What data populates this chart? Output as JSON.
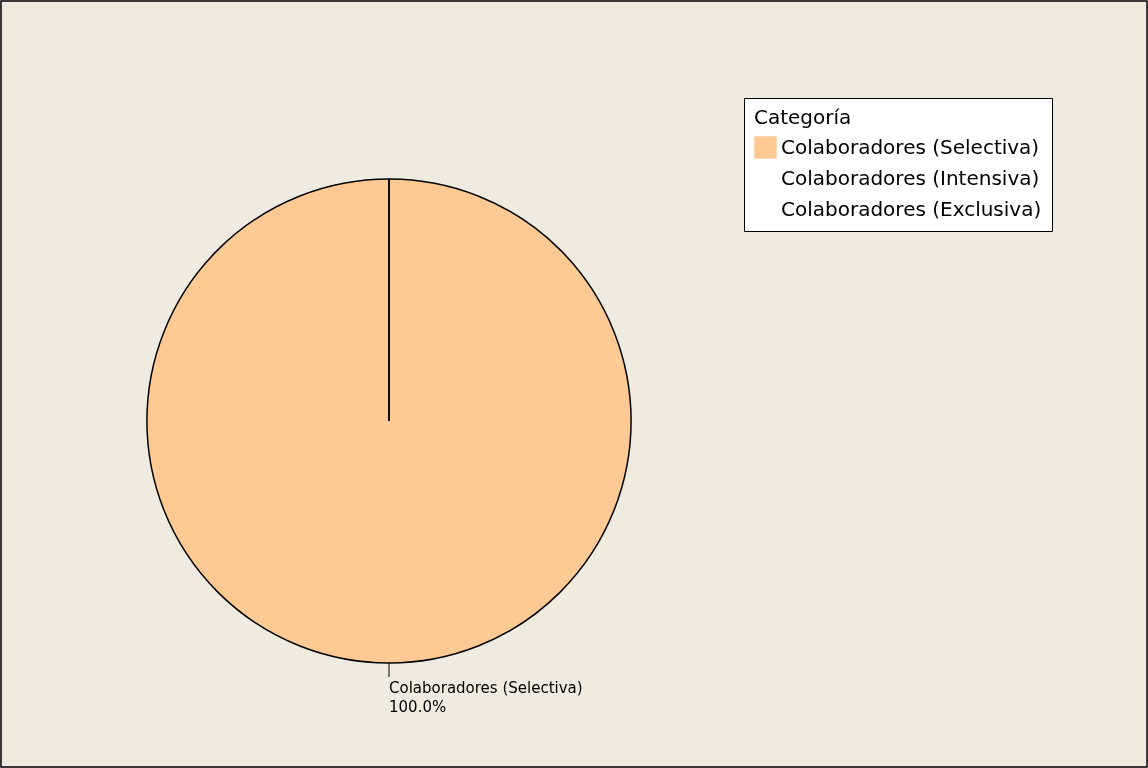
{
  "chart_data": {
    "type": "pie",
    "legend_title": "Categoría",
    "categories": [
      "Colaboradores (Selectiva)",
      "Colaboradores (Intensiva)",
      "Colaboradores (Exclusiva)"
    ],
    "values": [
      100,
      0,
      0
    ],
    "colors": [
      "#ffc994",
      "#ffffff",
      "#ffffff"
    ],
    "value_labels": [
      "100.0%",
      null,
      null
    ],
    "legend": "top right"
  }
}
